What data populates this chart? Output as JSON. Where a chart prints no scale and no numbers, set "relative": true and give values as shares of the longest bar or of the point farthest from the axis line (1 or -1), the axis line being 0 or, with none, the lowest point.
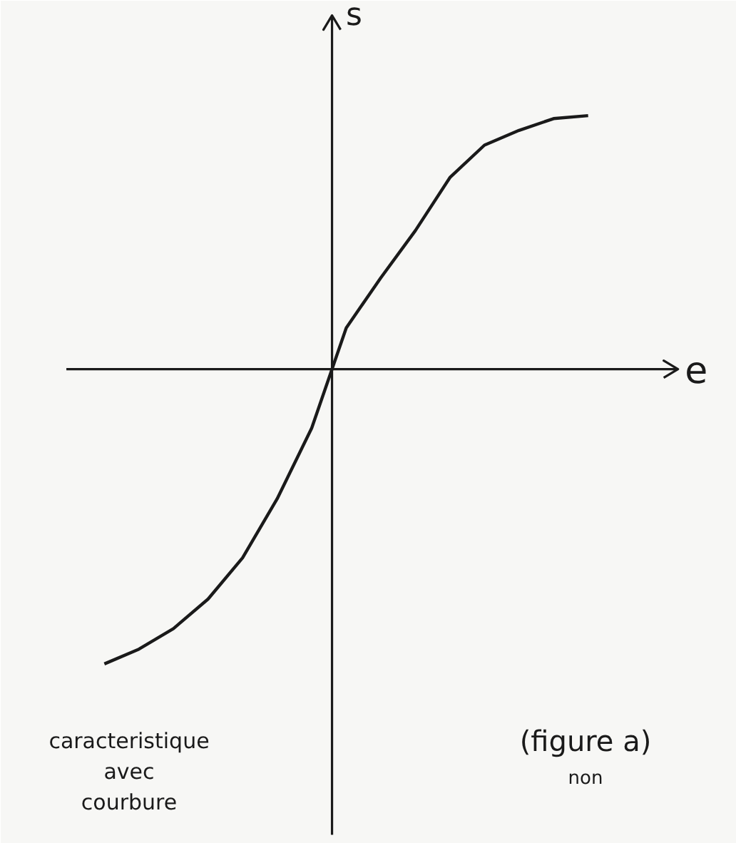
{
  "chart_data": {
    "type": "line",
    "relative": true,
    "xlabel": "e",
    "ylabel": "s",
    "categories": [
      null,
      null,
      null,
      null,
      null,
      null,
      null,
      null,
      null,
      null,
      null,
      null,
      null,
      null,
      null
    ],
    "series": [
      {
        "color": "#1a1a1a",
        "values": [
          -1,
          -0.95,
          -0.88,
          -0.78,
          -0.64,
          -0.44,
          -0.2,
          0.14,
          0.31,
          0.47,
          0.65,
          0.76,
          0.81,
          0.85,
          0.86
        ]
      }
    ],
    "annotations": [
      "caracteristique\navec\ncourbure",
      "(figure a)",
      "non"
    ],
    "marker": "none",
    "line_style": "solid"
  }
}
